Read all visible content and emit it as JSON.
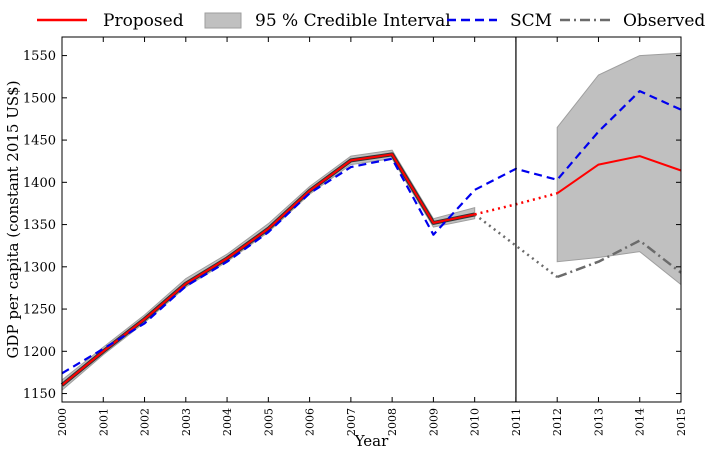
{
  "chart_data": {
    "type": "line",
    "title": "",
    "xlabel": "Year",
    "ylabel": "GDP per capita (constant 2015 US$)",
    "xlim": [
      2000,
      2015
    ],
    "ylim": [
      1140,
      1572
    ],
    "y_ticks": [
      1150,
      1200,
      1250,
      1300,
      1350,
      1400,
      1450,
      1500,
      1550
    ],
    "x_ticks": [
      2000,
      2001,
      2002,
      2003,
      2004,
      2005,
      2006,
      2007,
      2008,
      2009,
      2010,
      2011,
      2012,
      2013,
      2014,
      2015
    ],
    "intervention_year": 2011,
    "legend": {
      "placement": "top",
      "entries": [
        "Proposed",
        "95 % Credible Interval",
        "SCM",
        "Observed"
      ]
    },
    "colors": {
      "proposed": "#ff0000",
      "scm": "#0000ee",
      "observed": "#6b6b6b",
      "interval": "#c0c0c0",
      "interval_edge": "#9e9e9e",
      "vline": "#000000"
    },
    "series": [
      {
        "name": "Proposed",
        "style": "solid",
        "x": [
          2000,
          2001,
          2002,
          2003,
          2004,
          2005,
          2006,
          2007,
          2008,
          2009,
          2010,
          2011,
          2012,
          2013,
          2014,
          2015
        ],
        "values": [
          1160,
          1200,
          1238,
          1280,
          1310,
          1345,
          1390,
          1426,
          1433,
          1352,
          1362,
          1374,
          1387,
          1421,
          1431,
          1414
        ]
      },
      {
        "name": "SCM",
        "style": "dashed",
        "x": [
          2000,
          2001,
          2002,
          2003,
          2004,
          2005,
          2006,
          2007,
          2008,
          2009,
          2010,
          2011,
          2012,
          2013,
          2014,
          2015
        ],
        "values": [
          1174,
          1203,
          1233,
          1277,
          1306,
          1341,
          1387,
          1418,
          1428,
          1338,
          1391,
          1416,
          1403,
          1460,
          1508,
          1486
        ]
      },
      {
        "name": "Observed",
        "style": "dashdot",
        "x": [
          2000,
          2001,
          2002,
          2003,
          2004,
          2005,
          2006,
          2007,
          2008,
          2009,
          2010,
          2011,
          2012,
          2013,
          2014,
          2015
        ],
        "values": [
          1160,
          1200,
          1238,
          1280,
          1310,
          1345,
          1390,
          1426,
          1433,
          1352,
          1362,
          1325,
          1288,
          1306,
          1331,
          1293
        ]
      },
      {
        "name": "95 % Credible Interval",
        "style": "band",
        "x": [
          2000,
          2001,
          2002,
          2003,
          2004,
          2005,
          2006,
          2007,
          2008,
          2009,
          2010,
          2012,
          2013,
          2014,
          2015
        ],
        "lower": [
          1154,
          1196,
          1234,
          1276,
          1306,
          1341,
          1386,
          1421,
          1428,
          1347,
          1357,
          1306,
          1311,
          1318,
          1279
        ],
        "upper": [
          1166,
          1205,
          1243,
          1286,
          1315,
          1351,
          1395,
          1431,
          1438,
          1357,
          1370,
          1465,
          1527,
          1550,
          1553
        ]
      }
    ]
  }
}
